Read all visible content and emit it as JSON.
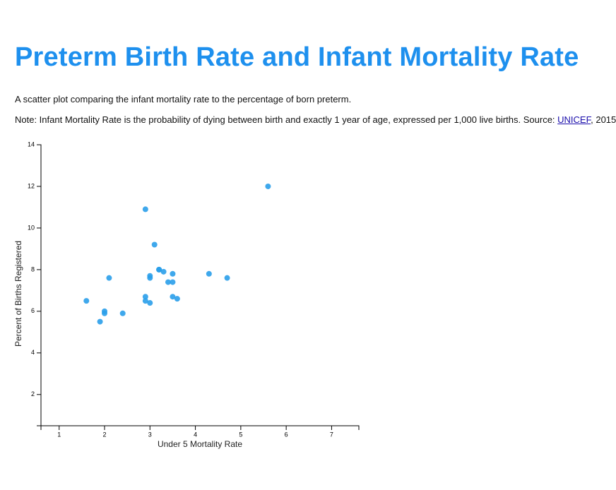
{
  "header": {
    "title": "Preterm Birth Rate and Infant Mortality Rate"
  },
  "description": "A scatter plot comparing the infant mortality rate to the percentage of born preterm.",
  "note": {
    "text": "Note: Infant Mortality Rate is the probability of dying between birth and exactly 1 year of age, expressed per 1,000 live births. Source: ",
    "link": "UNICEF",
    "suffix": ", 2015"
  },
  "chart_data": {
    "type": "scatter",
    "x_label": "Under 5 Mortality Rate",
    "y_label": "Percent of Births Registered",
    "color": "#2a9fea",
    "xlim": [
      0.6,
      7.6
    ],
    "xticks": [
      1,
      2,
      3,
      4,
      5,
      6,
      7
    ],
    "ylim": [
      0.5,
      14
    ],
    "yticks": [
      2,
      4,
      6,
      8,
      10,
      12,
      14
    ],
    "x": [
      1.6,
      2.0,
      2.0,
      1.9,
      2.1,
      2.4,
      2.9,
      2.9,
      2.9,
      3.0,
      3.0,
      3.0,
      3.1,
      3.2,
      3.2,
      3.3,
      3.4,
      3.5,
      3.5,
      3.5,
      3.6,
      4.3,
      4.7,
      5.6
    ],
    "y": [
      6.5,
      6.0,
      5.9,
      5.5,
      7.6,
      5.9,
      10.9,
      6.7,
      6.5,
      6.4,
      7.7,
      7.6,
      9.2,
      8.0,
      8.0,
      7.9,
      7.4,
      7.4,
      7.8,
      6.7,
      6.6,
      7.8,
      7.6,
      12.0
    ]
  }
}
